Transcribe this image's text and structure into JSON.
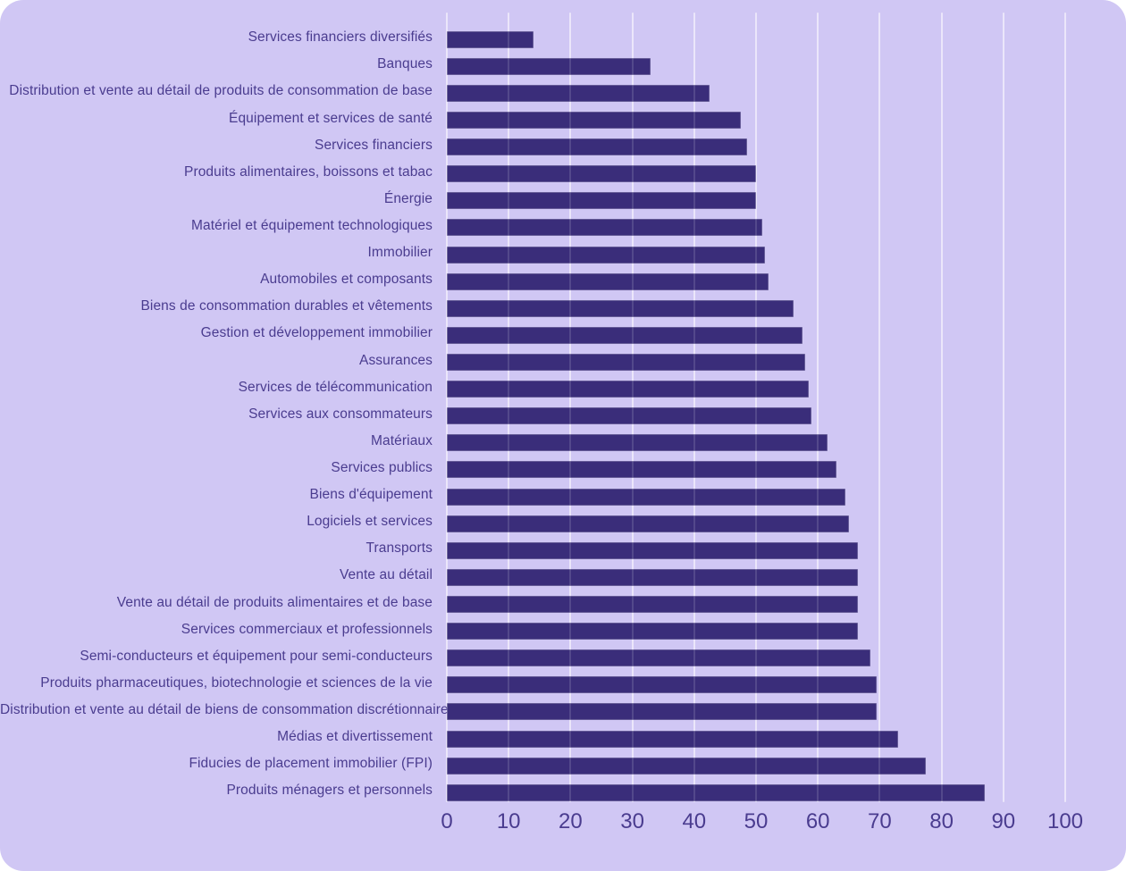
{
  "chart_data": {
    "type": "bar",
    "orientation": "horizontal",
    "title": "",
    "xlabel": "",
    "ylabel": "",
    "xlim": [
      0,
      100
    ],
    "x_ticks": [
      0,
      10,
      20,
      30,
      40,
      50,
      60,
      70,
      80,
      90,
      100
    ],
    "grid": "vertical",
    "legend": "none",
    "categories": [
      "Services financiers diversifiés",
      "Banques",
      "Distribution et vente au détail de produits de consommation de base",
      "Équipement et services de santé",
      "Services financiers",
      "Produits alimentaires, boissons et tabac",
      "Énergie",
      "Matériel et équipement technologiques",
      "Immobilier",
      "Automobiles et composants",
      "Biens de consommation durables et vêtements",
      "Gestion et développement immobilier",
      "Assurances",
      "Services de télécommunication",
      "Services aux consommateurs",
      "Matériaux",
      "Services publics",
      "Biens d'équipement",
      "Logiciels et services",
      "Transports",
      "Vente au détail",
      "Vente au détail de produits alimentaires et de base",
      "Services commerciaux et professionnels",
      "Semi-conducteurs et équipement pour semi-conducteurs",
      "Produits pharmaceutiques, biotechnologie et sciences de la vie",
      "Distribution et vente au détail de biens de consommation discrétionnaire",
      "Médias et divertissement",
      "Fiducies de placement immobilier (FPI)",
      "Produits ménagers et personnels"
    ],
    "values": [
      14,
      33,
      42.5,
      47.5,
      48.5,
      50,
      50,
      51,
      51.5,
      52,
      56,
      57.5,
      58,
      58.5,
      59,
      61.5,
      63,
      64.5,
      65,
      66.5,
      66.5,
      66.5,
      66.5,
      68.5,
      69.5,
      69.5,
      73,
      77.5,
      87
    ]
  },
  "style": {
    "card_background": "#d0c7f4",
    "bar_color": "#3a2d7a",
    "text_color": "#4a3c8f",
    "gridline_under_color": "rgba(255,255,255,0.5)",
    "gridline_over_color": "rgba(255,255,255,0.13)"
  }
}
